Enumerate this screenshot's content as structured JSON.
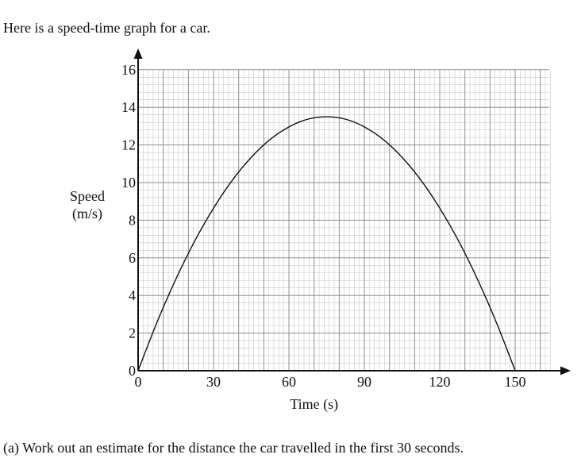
{
  "intro_text": "Here is a speed-time graph for a car.",
  "question": {
    "text": "(a) Work out an estimate for the distance the car travelled in the first 30 seconds."
  },
  "chart_data": {
    "type": "line",
    "title": "",
    "xlabel": "Time (s)",
    "ylabel_lines": [
      "Speed",
      "(m/s)"
    ],
    "xlim": [
      0,
      165
    ],
    "ylim": [
      0,
      16
    ],
    "x_ticks": [
      0,
      30,
      60,
      90,
      120,
      150
    ],
    "x_tick_labels": [
      "0",
      "30",
      "60",
      "90",
      "120",
      "150"
    ],
    "y_ticks": [
      0,
      2,
      4,
      6,
      8,
      10,
      12,
      14,
      16
    ],
    "y_tick_labels": [
      "0",
      "2",
      "4",
      "6",
      "8",
      "10",
      "12",
      "14",
      "16"
    ],
    "grid": true,
    "series": [
      {
        "x": [
          0,
          7.5,
          15,
          22.5,
          30,
          37.5,
          45,
          52.5,
          60,
          67.5,
          75,
          82.5,
          90,
          97.5,
          105,
          112.5,
          120,
          127.5,
          135,
          142.5,
          150
        ],
        "y": [
          0,
          2.57,
          4.86,
          6.89,
          8.64,
          10.13,
          11.34,
          12.29,
          12.96,
          13.37,
          13.5,
          13.37,
          12.96,
          12.29,
          11.34,
          10.13,
          8.64,
          6.89,
          4.86,
          2.57,
          0
        ]
      }
    ],
    "colors": {
      "axis": "#111111",
      "grid_minor": "#c8c8c8",
      "grid_major": "#8f8f8f",
      "curve": "#111111"
    }
  }
}
